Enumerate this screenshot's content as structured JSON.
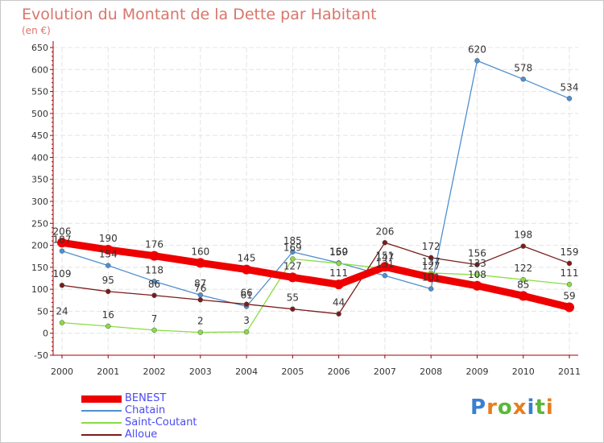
{
  "title": "Evolution du Montant de la Dette par Habitant",
  "subtitle": "(en €)",
  "chart_data": {
    "type": "line",
    "x": [
      "2000",
      "2001",
      "2002",
      "2003",
      "2004",
      "2005",
      "2006",
      "2007",
      "2008",
      "2009",
      "2010",
      "2011"
    ],
    "ylim": [
      -50,
      650
    ],
    "yticks": [
      -50,
      0,
      50,
      100,
      150,
      200,
      250,
      300,
      350,
      400,
      450,
      500,
      550,
      600,
      650
    ],
    "grid": true,
    "legend_position": "bottom-left",
    "series": [
      {
        "name": "BENEST",
        "color": "#ee0000",
        "values": [
          206,
          190,
          176,
          160,
          145,
          127,
          111,
          151,
          127,
          108,
          85,
          59
        ]
      },
      {
        "name": "Chatain",
        "color": "#4f8fd0",
        "values": [
          187,
          154,
          118,
          87,
          61,
          185,
          160,
          131,
          101,
          620,
          578,
          534
        ]
      },
      {
        "name": "Saint-Coutant",
        "color": "#88dd44",
        "values": [
          24,
          16,
          7,
          2,
          3,
          169,
          159,
          147,
          137,
          133,
          122,
          111
        ]
      },
      {
        "name": "Alloue",
        "color": "#7a1c1c",
        "values": [
          109,
          95,
          86,
          76,
          66,
          55,
          44,
          206,
          172,
          156,
          198,
          159
        ]
      }
    ]
  },
  "logo": {
    "text": "Proxiti"
  }
}
